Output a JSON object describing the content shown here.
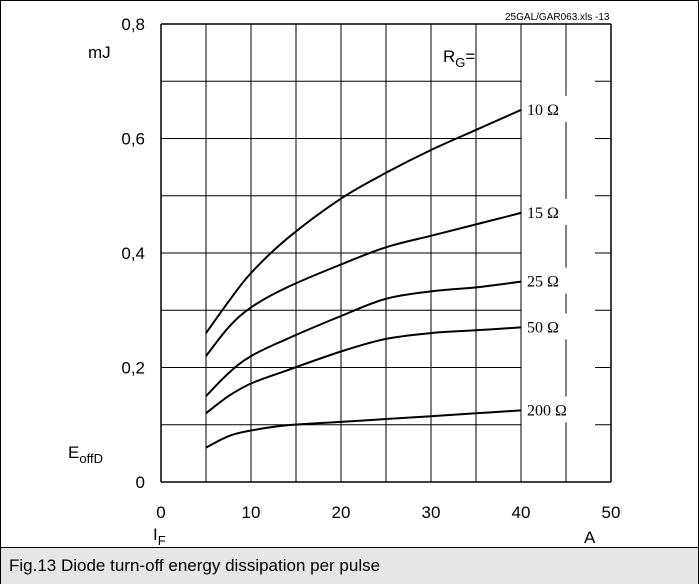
{
  "caption": "Fig.13 Diode turn-off energy dissipation per pulse",
  "colors": {
    "grid": "#000000",
    "curve": "#000000",
    "caption_bg": "#e6e6e6"
  },
  "chart_data": {
    "type": "line",
    "title": "",
    "file_tag": "25GAL/GAR063.xls  -13",
    "xlabel": "I",
    "xlabel_sub": "F",
    "xunit": "A",
    "ylabel_top": "mJ",
    "ylabel": "E",
    "ylabel_sub": "offD",
    "legend_title": "R",
    "legend_title_sub": "G",
    "legend_title_suffix": "=",
    "xlim": [
      0,
      50
    ],
    "ylim": [
      0,
      0.8
    ],
    "x_ticks": [
      0,
      10,
      20,
      30,
      40,
      50
    ],
    "x_tick_labels": [
      "0",
      "10",
      "20",
      "30",
      "40",
      "50"
    ],
    "y_ticks": [
      0,
      0.2,
      0.4,
      0.6,
      0.8
    ],
    "y_tick_labels": [
      "0",
      "0,2",
      "0,4",
      "0,6",
      "0,8"
    ],
    "grid": true,
    "series": [
      {
        "name": "10 Ω",
        "x": [
          5,
          7.5,
          10,
          14,
          20,
          25,
          30,
          35,
          40
        ],
        "values": [
          0.26,
          0.315,
          0.365,
          0.425,
          0.495,
          0.54,
          0.58,
          0.615,
          0.65
        ]
      },
      {
        "name": "15 Ω",
        "x": [
          5,
          7.5,
          10,
          14,
          20,
          25,
          30,
          35,
          40
        ],
        "values": [
          0.22,
          0.27,
          0.305,
          0.34,
          0.38,
          0.41,
          0.43,
          0.45,
          0.47
        ]
      },
      {
        "name": "25 Ω",
        "x": [
          5,
          7.5,
          10,
          14,
          20,
          25,
          30,
          35,
          40
        ],
        "values": [
          0.15,
          0.19,
          0.22,
          0.25,
          0.29,
          0.32,
          0.333,
          0.34,
          0.35
        ]
      },
      {
        "name": "50 Ω",
        "x": [
          5,
          7.5,
          10,
          14,
          20,
          25,
          30,
          35,
          40
        ],
        "values": [
          0.12,
          0.15,
          0.172,
          0.195,
          0.228,
          0.25,
          0.26,
          0.265,
          0.27
        ]
      },
      {
        "name": "200 Ω",
        "x": [
          5,
          7.5,
          10,
          14,
          20,
          25,
          30,
          35,
          40
        ],
        "values": [
          0.06,
          0.08,
          0.09,
          0.099,
          0.105,
          0.11,
          0.115,
          0.12,
          0.125
        ]
      }
    ]
  }
}
